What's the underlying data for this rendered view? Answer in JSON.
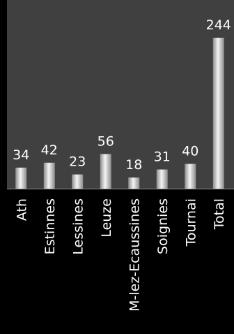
{
  "chart_data": {
    "type": "bar",
    "categories": [
      "Ath",
      "Estinnes",
      "Lessines",
      "Leuze",
      "M-lez-Ecaussines",
      "Soignies",
      "Tournai",
      "Total"
    ],
    "values": [
      34,
      42,
      23,
      56,
      18,
      31,
      40,
      244
    ],
    "data_labels": [
      "34",
      "42",
      "23",
      "56",
      "18",
      "31",
      "40",
      "244"
    ],
    "title": "",
    "xlabel": "",
    "ylabel": "",
    "ylim": [
      0,
      270
    ],
    "grid": false,
    "legend": "none",
    "colors": {
      "background": "#000000",
      "plot_area": "#404040",
      "bar_light": "#f4f4f4",
      "bar_dark": "#8c8c8c",
      "text": "#ffffff",
      "axis": "#8a8a8a"
    }
  }
}
